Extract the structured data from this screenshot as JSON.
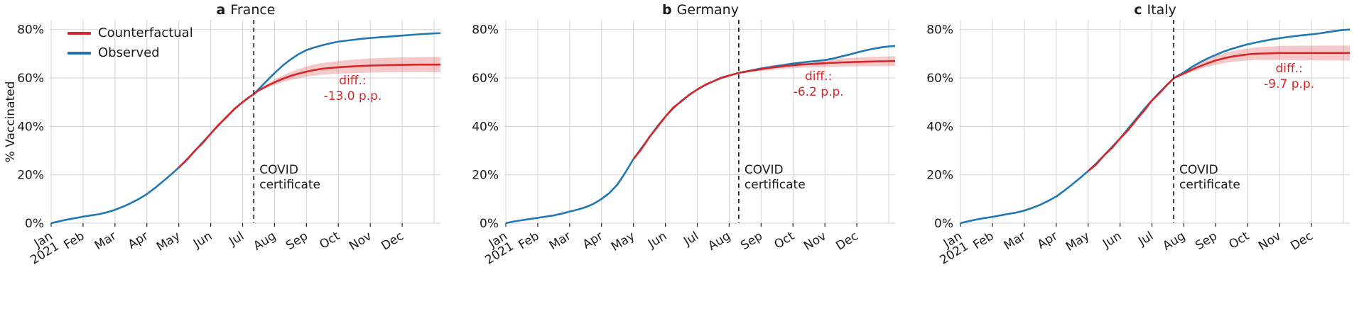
{
  "figure": {
    "ylabel": "% Vaccinated",
    "legend": {
      "items": [
        {
          "label": "Counterfactual",
          "color": "#d62728"
        },
        {
          "label": "Observed",
          "color": "#1f77b4"
        }
      ]
    },
    "colors": {
      "counterfactual": "#d62728",
      "observed": "#1f77b4",
      "band": "#d62728",
      "grid": "#d9d9d9",
      "tick": "#222222",
      "text": "#1a1a1a",
      "annotation": "#d62728",
      "intervention_line": "#111111"
    }
  },
  "chart_data": [
    {
      "type": "line",
      "title_letter": "a",
      "title": "France",
      "ylabel": "% Vaccinated",
      "ylim": [
        0,
        84
      ],
      "yticks": [
        0,
        20,
        40,
        60,
        80
      ],
      "ytick_labels": [
        "0%",
        "20%",
        "40%",
        "60%",
        "80%"
      ],
      "x_unit": "months since 2021-01-01",
      "xtick_labels": [
        "Jan\n2021",
        "Feb",
        "Mar",
        "Apr",
        "May",
        "Jun",
        "Jul",
        "Aug",
        "Sep",
        "Oct",
        "Nov",
        "Dec"
      ],
      "intervention": {
        "x": 6.35,
        "label": "COVID\ncertificate"
      },
      "diff_label": "diff.:\n-13.0 p.p.",
      "diff_pp": -13.0,
      "diff_pos": {
        "x": 9.45,
        "y": 55.5
      },
      "series": {
        "observed": {
          "x": [
            0,
            0.2,
            0.4,
            0.6,
            0.8,
            1,
            1.25,
            1.5,
            1.75,
            2,
            2.25,
            2.5,
            2.75,
            3,
            3.25,
            3.5,
            3.75,
            4,
            4.25,
            4.5,
            4.75,
            5,
            5.25,
            5.5,
            5.75,
            6,
            6.2,
            6.35,
            6.5,
            6.75,
            7,
            7.25,
            7.5,
            7.75,
            8,
            8.25,
            8.5,
            8.75,
            9,
            9.25,
            9.5,
            9.75,
            10,
            10.5,
            11,
            11.5,
            12,
            12.2
          ],
          "y": [
            0,
            0.6,
            1.2,
            1.7,
            2.2,
            2.7,
            3.2,
            3.7,
            4.5,
            5.5,
            6.8,
            8.3,
            10,
            12,
            14.5,
            17.2,
            20,
            23,
            26.3,
            29.8,
            33.4,
            37,
            40.5,
            44,
            47.2,
            50,
            52,
            53.3,
            55.3,
            58.7,
            62,
            65,
            67.6,
            69.8,
            71.5,
            72.6,
            73.5,
            74.3,
            75,
            75.4,
            75.8,
            76.2,
            76.5,
            77,
            77.5,
            78,
            78.4,
            78.5
          ]
        },
        "counterfactual": {
          "x": [
            4,
            4.25,
            4.5,
            4.75,
            5,
            5.25,
            5.5,
            5.75,
            6,
            6.2,
            6.35,
            6.5,
            6.75,
            7,
            7.25,
            7.5,
            7.75,
            8,
            8.25,
            8.5,
            9,
            9.5,
            10,
            10.5,
            11,
            11.5,
            12,
            12.2
          ],
          "y": [
            23,
            26.1,
            29.9,
            33.1,
            37,
            40.7,
            43.8,
            47.3,
            50,
            52,
            53.3,
            54.8,
            56.6,
            58.2,
            59.6,
            60.8,
            61.8,
            62.6,
            63.3,
            63.8,
            64.4,
            64.8,
            65.1,
            65.3,
            65.4,
            65.5,
            65.5,
            65.5
          ]
        },
        "band": {
          "x": [
            6.35,
            6.5,
            6.75,
            7,
            7.25,
            7.5,
            7.75,
            8,
            8.25,
            8.5,
            9,
            9.5,
            10,
            10.5,
            11,
            11.5,
            12,
            12.2
          ],
          "lower": [
            53.3,
            54.4,
            55.8,
            57.1,
            58.2,
            59.1,
            59.9,
            60.5,
            61,
            61.4,
            61.8,
            62,
            62.2,
            62.3,
            62.3,
            62.4,
            62.3,
            62.3
          ],
          "upper": [
            53.3,
            55.2,
            57.4,
            59.3,
            61,
            62.5,
            63.7,
            64.7,
            65.6,
            66.2,
            67,
            67.6,
            68,
            68.3,
            68.5,
            68.6,
            68.7,
            68.7
          ]
        }
      }
    },
    {
      "type": "line",
      "title_letter": "b",
      "title": "Germany",
      "ylim": [
        0,
        84
      ],
      "yticks": [
        0,
        20,
        40,
        60,
        80
      ],
      "ytick_labels": [
        "0%",
        "20%",
        "40%",
        "60%",
        "80%"
      ],
      "x_unit": "months since 2021-01-01",
      "xtick_labels": [
        "Jan\n2021",
        "Feb",
        "Mar",
        "Apr",
        "May",
        "Jun",
        "Jul",
        "Aug",
        "Sep",
        "Oct",
        "Nov",
        "Dec"
      ],
      "intervention": {
        "x": 7.3,
        "label": "COVID\ncertificate"
      },
      "diff_label": "diff.:\n-6.2 p.p.",
      "diff_pp": -6.2,
      "diff_pos": {
        "x": 9.8,
        "y": 57.5
      },
      "series": {
        "observed": {
          "x": [
            0,
            0.25,
            0.5,
            0.75,
            1,
            1.25,
            1.5,
            1.75,
            2,
            2.25,
            2.5,
            2.75,
            3,
            3.25,
            3.5,
            3.75,
            4,
            4.25,
            4.5,
            4.75,
            5,
            5.25,
            5.5,
            5.75,
            6,
            6.25,
            6.5,
            6.75,
            7,
            7.3,
            7.5,
            7.75,
            8,
            8.25,
            8.5,
            8.75,
            9,
            9.25,
            9.5,
            9.75,
            10,
            10.25,
            10.5,
            10.75,
            11,
            11.25,
            11.5,
            11.75,
            12,
            12.2
          ],
          "y": [
            0,
            0.7,
            1.2,
            1.7,
            2.2,
            2.7,
            3.2,
            3.9,
            4.8,
            5.6,
            6.6,
            8,
            10,
            12.5,
            16,
            21,
            26.5,
            31,
            35.5,
            40,
            44,
            47.5,
            50.5,
            53,
            55.2,
            57,
            58.6,
            59.9,
            61,
            62.1,
            62.6,
            63.3,
            63.9,
            64.4,
            64.9,
            65.4,
            65.9,
            66.3,
            66.7,
            67,
            67.4,
            68,
            68.8,
            69.6,
            70.5,
            71.3,
            72,
            72.6,
            73,
            73.2
          ]
        },
        "counterfactual": {
          "x": [
            4,
            4.25,
            4.5,
            4.75,
            5,
            5.25,
            5.5,
            5.75,
            6,
            6.25,
            6.5,
            6.75,
            7,
            7.3,
            7.5,
            7.75,
            8,
            8.25,
            8.5,
            8.75,
            9,
            9.25,
            9.5,
            9.75,
            10,
            10.5,
            11,
            11.5,
            12,
            12.2
          ],
          "y": [
            26.5,
            30.6,
            35.6,
            39.7,
            44,
            47.8,
            50.3,
            53.1,
            55.2,
            57.2,
            58.6,
            60.1,
            61,
            62.1,
            62.5,
            63.1,
            63.6,
            64.1,
            64.5,
            64.9,
            65.2,
            65.5,
            65.7,
            65.9,
            66.1,
            66.4,
            66.6,
            66.8,
            66.9,
            67
          ]
        },
        "band": {
          "x": [
            7.3,
            7.5,
            7.75,
            8,
            8.25,
            8.5,
            8.75,
            9,
            9.25,
            9.5,
            9.75,
            10,
            10.5,
            11,
            11.5,
            12,
            12.2
          ],
          "lower": [
            62.1,
            62.2,
            62.6,
            62.9,
            63.2,
            63.5,
            63.8,
            64,
            64.2,
            64.3,
            64.4,
            64.5,
            64.7,
            64.8,
            64.9,
            64.9,
            65
          ],
          "upper": [
            62.1,
            62.8,
            63.6,
            64.3,
            65,
            65.5,
            66,
            66.4,
            66.8,
            67.1,
            67.4,
            67.7,
            68.1,
            68.4,
            68.7,
            68.9,
            69
          ]
        }
      }
    },
    {
      "type": "line",
      "title_letter": "c",
      "title": "Italy",
      "ylim": [
        0,
        84
      ],
      "yticks": [
        0,
        20,
        40,
        60,
        80
      ],
      "ytick_labels": [
        "0%",
        "20%",
        "40%",
        "60%",
        "80%"
      ],
      "x_unit": "months since 2021-01-01",
      "xtick_labels": [
        "Jan\n2021",
        "Feb",
        "Mar",
        "Apr",
        "May",
        "Jun",
        "Jul",
        "Aug",
        "Sep",
        "Oct",
        "Nov",
        "Dec"
      ],
      "intervention": {
        "x": 6.68,
        "label": "COVID\ncertificate"
      },
      "diff_label": "diff.:\n-9.7 p.p.",
      "diff_pp": -9.7,
      "diff_pos": {
        "x": 10.3,
        "y": 60.5
      },
      "series": {
        "observed": {
          "x": [
            0,
            0.25,
            0.5,
            0.75,
            1,
            1.25,
            1.5,
            1.75,
            2,
            2.25,
            2.5,
            2.75,
            3,
            3.25,
            3.5,
            3.75,
            4,
            4.25,
            4.5,
            4.75,
            5,
            5.25,
            5.5,
            5.75,
            6,
            6.25,
            6.5,
            6.7,
            7,
            7.25,
            7.5,
            7.75,
            8,
            8.25,
            8.5,
            8.75,
            9,
            9.25,
            9.5,
            9.75,
            10,
            10.25,
            10.5,
            10.75,
            11,
            11.25,
            11.5,
            11.75,
            12,
            12.2
          ],
          "y": [
            0,
            0.8,
            1.5,
            2.1,
            2.6,
            3.2,
            3.8,
            4.4,
            5.2,
            6.3,
            7.6,
            9.2,
            11,
            13.4,
            16,
            18.7,
            21.5,
            24.6,
            28,
            31.5,
            35,
            39,
            43,
            47,
            50.7,
            54.2,
            57.5,
            60,
            62.3,
            64.5,
            66.4,
            68.1,
            69.5,
            70.9,
            72,
            73,
            73.9,
            74.6,
            75.3,
            75.9,
            76.4,
            76.9,
            77.3,
            77.7,
            78,
            78.4,
            78.9,
            79.4,
            79.8,
            80
          ]
        },
        "counterfactual": {
          "x": [
            4,
            4.25,
            4.5,
            4.75,
            5,
            5.25,
            5.5,
            5.75,
            6,
            6.25,
            6.5,
            6.7,
            7,
            7.25,
            7.5,
            7.75,
            8,
            8.25,
            8.5,
            8.75,
            9,
            9.25,
            9.5,
            9.75,
            10,
            10.5,
            11,
            11.5,
            12,
            12.2
          ],
          "y": [
            21.5,
            24.2,
            28,
            31.1,
            35,
            38.4,
            42.5,
            46.4,
            50.7,
            53.9,
            57.5,
            60,
            61.8,
            63.4,
            64.8,
            66.1,
            67.2,
            68.1,
            68.8,
            69.3,
            69.7,
            70,
            70.1,
            70.2,
            70.3,
            70.3,
            70.3,
            70.3,
            70.3,
            70.3
          ]
        },
        "band": {
          "x": [
            6.7,
            7,
            7.25,
            7.5,
            7.75,
            8,
            8.25,
            8.5,
            8.75,
            9,
            9.25,
            9.5,
            9.75,
            10,
            10.5,
            11,
            11.5,
            12,
            12.2
          ],
          "lower": [
            60,
            61.3,
            62.5,
            63.6,
            64.6,
            65.4,
            66.1,
            66.6,
            66.9,
            67.2,
            67.4,
            67.4,
            67.4,
            67.4,
            67.3,
            67.3,
            67.2,
            67.2,
            67.2
          ],
          "upper": [
            60,
            62.3,
            64.3,
            66,
            67.6,
            69,
            70.1,
            71,
            71.7,
            72.2,
            72.6,
            72.8,
            73,
            73.2,
            73.3,
            73.3,
            73.4,
            73.4,
            73.4
          ]
        }
      }
    }
  ]
}
